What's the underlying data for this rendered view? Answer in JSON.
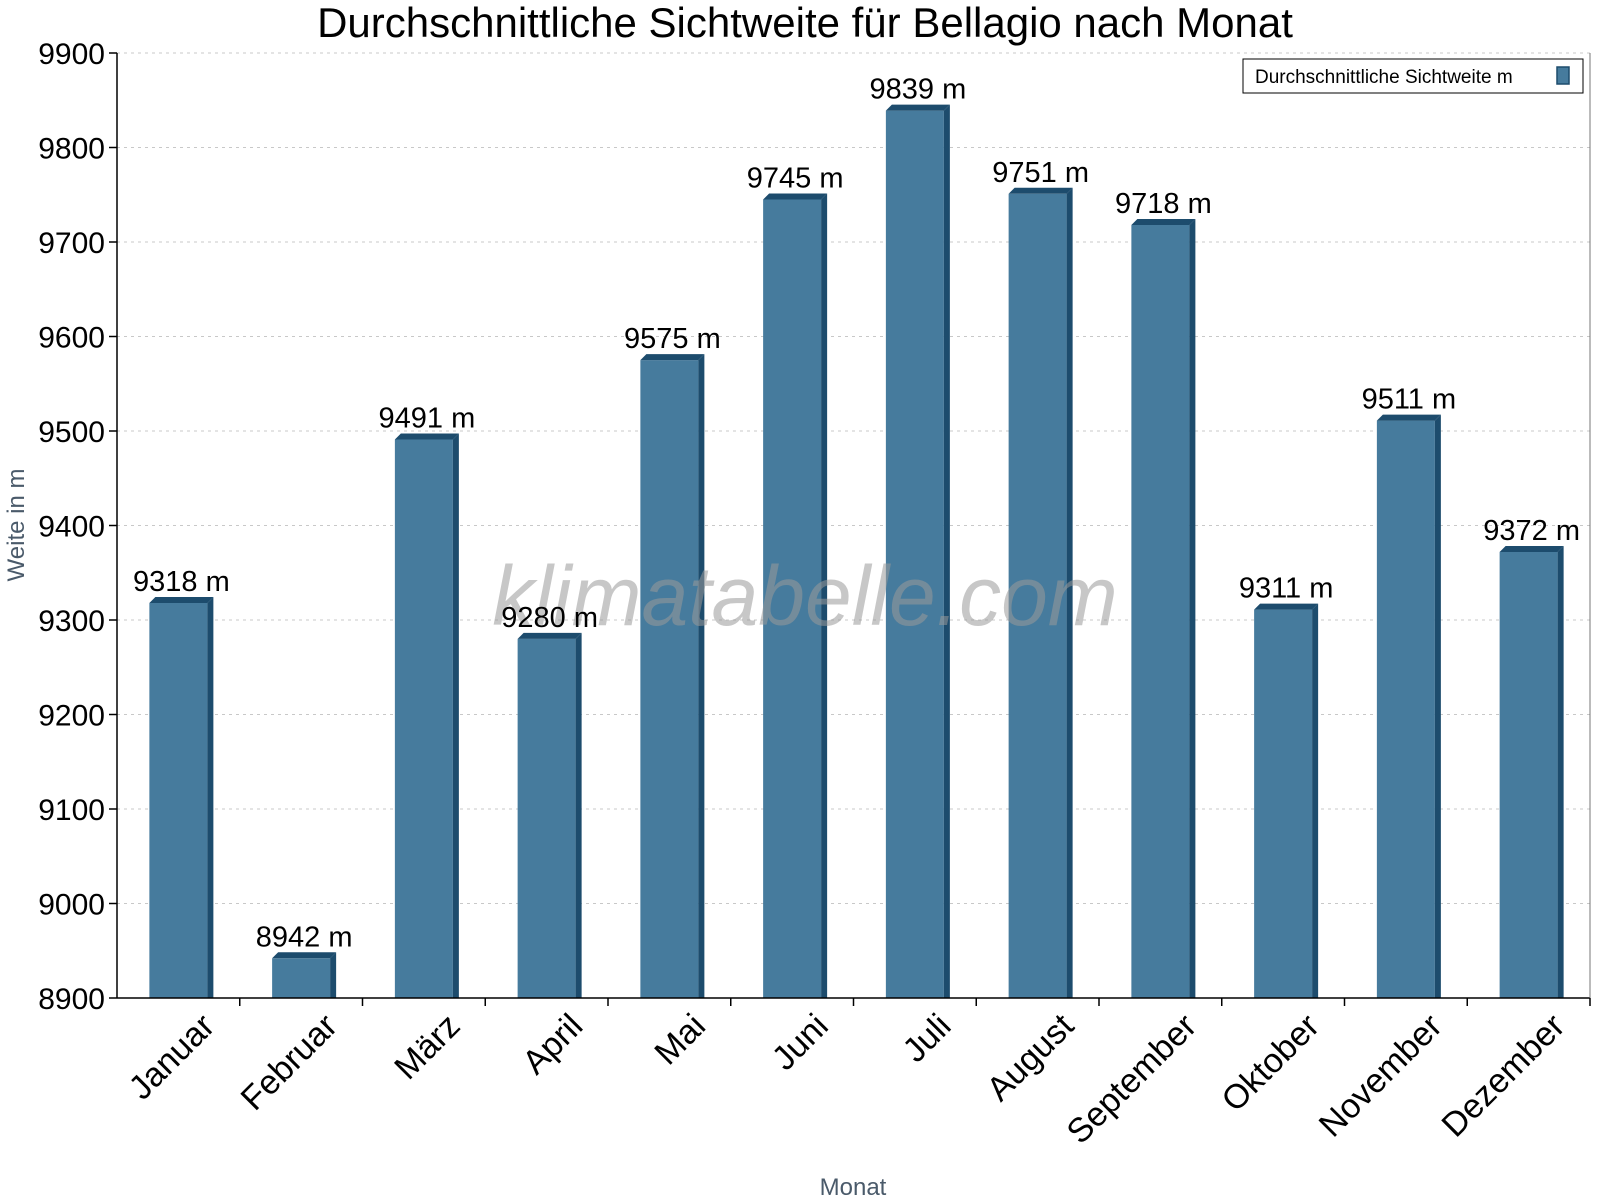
{
  "chart_data": {
    "type": "bar",
    "title": "Durchschnittliche Sichtweite für Bellagio nach Monat",
    "xlabel": "Monat",
    "ylabel": "Weite in m",
    "ylim": [
      8900,
      9900
    ],
    "yticks": [
      8900,
      9000,
      9100,
      9200,
      9300,
      9400,
      9500,
      9600,
      9700,
      9800,
      9900
    ],
    "grid": true,
    "legend_position": "top-right",
    "categories": [
      "Januar",
      "Februar",
      "März",
      "April",
      "Mai",
      "Juni",
      "Juli",
      "August",
      "September",
      "Oktober",
      "November",
      "Dezember"
    ],
    "series": [
      {
        "name": "Durchschnittliche Sichtweite m",
        "values": [
          9318,
          8942,
          9491,
          9280,
          9575,
          9745,
          9839,
          9751,
          9718,
          9311,
          9511,
          9372
        ],
        "data_labels": [
          "9318 m",
          "8942 m",
          "9491 m",
          "9280 m",
          "9575 m",
          "9745 m",
          "9839 m",
          "9751 m",
          "9718 m",
          "9311 m",
          "9511 m",
          "9372 m"
        ],
        "color": "#467b9d",
        "edge_color": "#1d4c6d"
      }
    ],
    "watermark": "klimatabelle.com"
  }
}
